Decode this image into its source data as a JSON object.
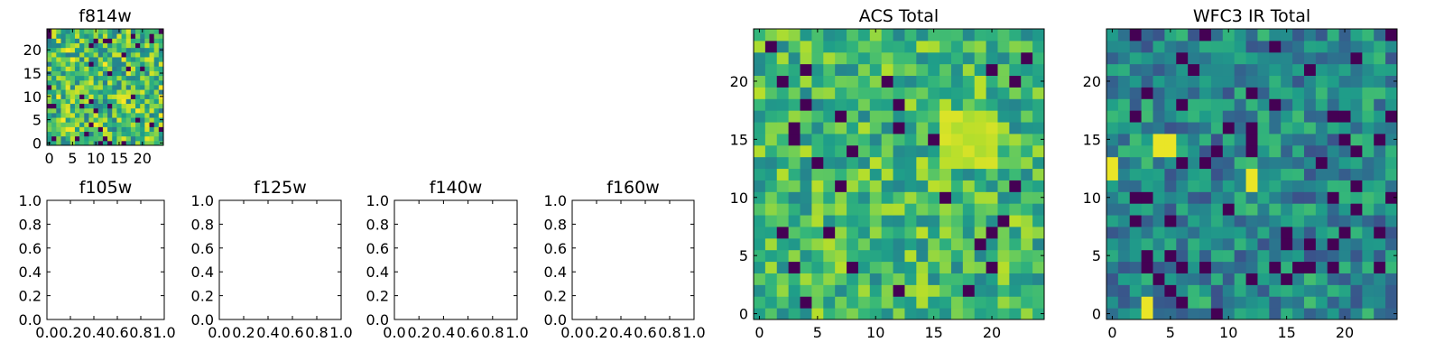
{
  "chart_data": [
    {
      "id": "f814w",
      "type": "heatmap",
      "title": "f814w",
      "colormap": "viridis",
      "xlim": [
        -0.5,
        24.5
      ],
      "ylim": [
        -0.5,
        24.5
      ],
      "xticks": [
        0,
        5,
        10,
        15,
        20
      ],
      "yticks": [
        0,
        5,
        10,
        15,
        20
      ],
      "xticklabels": [
        "0",
        "5",
        "10",
        "15",
        "20"
      ],
      "yticklabels": [
        "0",
        "5",
        "10",
        "15",
        "20"
      ],
      "grid_size": 25,
      "value_range": [
        0,
        1
      ],
      "pixel_scale": 0.5,
      "seed": 11,
      "dark_fraction": 0.07,
      "bright_fraction": 0.06
    },
    {
      "id": "f105w",
      "type": "empty",
      "title": "f105w",
      "xlim": [
        0,
        1
      ],
      "ylim": [
        0,
        1
      ],
      "xticklabels": [
        "0.0",
        "0.2",
        "0.4",
        "0.6",
        "0.8",
        "1.0"
      ],
      "yticklabels": [
        "0.0",
        "0.2",
        "0.4",
        "0.6",
        "0.8",
        "1.0"
      ]
    },
    {
      "id": "f125w",
      "type": "empty",
      "title": "f125w",
      "xlim": [
        0,
        1
      ],
      "ylim": [
        0,
        1
      ],
      "xticklabels": [
        "0.0",
        "0.2",
        "0.4",
        "0.6",
        "0.8",
        "1.0"
      ],
      "yticklabels": [
        "0.0",
        "0.2",
        "0.4",
        "0.6",
        "0.8",
        "1.0"
      ]
    },
    {
      "id": "f140w",
      "type": "empty",
      "title": "f140w",
      "xlim": [
        0,
        1
      ],
      "ylim": [
        0,
        1
      ],
      "xticklabels": [
        "0.0",
        "0.2",
        "0.4",
        "0.6",
        "0.8",
        "1.0"
      ],
      "yticklabels": [
        "0.0",
        "0.2",
        "0.4",
        "0.6",
        "0.8",
        "1.0"
      ]
    },
    {
      "id": "f160w",
      "type": "empty",
      "title": "f160w",
      "xlim": [
        0,
        1
      ],
      "ylim": [
        0,
        1
      ],
      "xticklabels": [
        "0.0",
        "0.2",
        "0.4",
        "0.6",
        "0.8",
        "1.0"
      ],
      "yticklabels": [
        "0.0",
        "0.2",
        "0.4",
        "0.6",
        "0.8",
        "1.0"
      ]
    },
    {
      "id": "acs_total",
      "type": "heatmap",
      "title": "ACS Total",
      "colormap": "viridis",
      "xlim": [
        -0.5,
        24.5
      ],
      "ylim": [
        -0.5,
        24.5
      ],
      "xticks": [
        0,
        5,
        10,
        15,
        20
      ],
      "yticks": [
        0,
        5,
        10,
        15,
        20
      ],
      "xticklabels": [
        "0",
        "5",
        "10",
        "15",
        "20"
      ],
      "yticklabels": [
        "0",
        "5",
        "10",
        "15",
        "20"
      ],
      "grid_size": 25,
      "value_range": [
        0,
        1
      ],
      "pixel_scale": 1,
      "seed": 7,
      "mean_level": 0.66,
      "dark_fraction": 0.05,
      "bright_region": {
        "x": [
          16,
          20
        ],
        "y": [
          13,
          17
        ],
        "value": 0.95
      }
    },
    {
      "id": "wfc3_ir_total",
      "type": "heatmap",
      "title": "WFC3 IR Total",
      "colormap": "viridis",
      "xlim": [
        -0.5,
        24.5
      ],
      "ylim": [
        -0.5,
        24.5
      ],
      "xticks": [
        0,
        5,
        10,
        15,
        20
      ],
      "yticks": [
        0,
        5,
        10,
        15,
        20
      ],
      "xticklabels": [
        "0",
        "5",
        "10",
        "15",
        "20"
      ],
      "yticklabels": [
        "0",
        "5",
        "10",
        "15",
        "20"
      ],
      "grid_size": 25,
      "value_range": [
        0,
        1
      ],
      "pixel_scale": 1,
      "seed": 23,
      "mean_level": 0.42,
      "dark_fraction": 0.07,
      "bright_pixels": [
        [
          4,
          15
        ],
        [
          5,
          15
        ],
        [
          4,
          14
        ],
        [
          5,
          14
        ],
        [
          12,
          12
        ],
        [
          12,
          11
        ],
        [
          0,
          13
        ],
        [
          0,
          12
        ],
        [
          3,
          1
        ],
        [
          3,
          0
        ]
      ]
    }
  ]
}
